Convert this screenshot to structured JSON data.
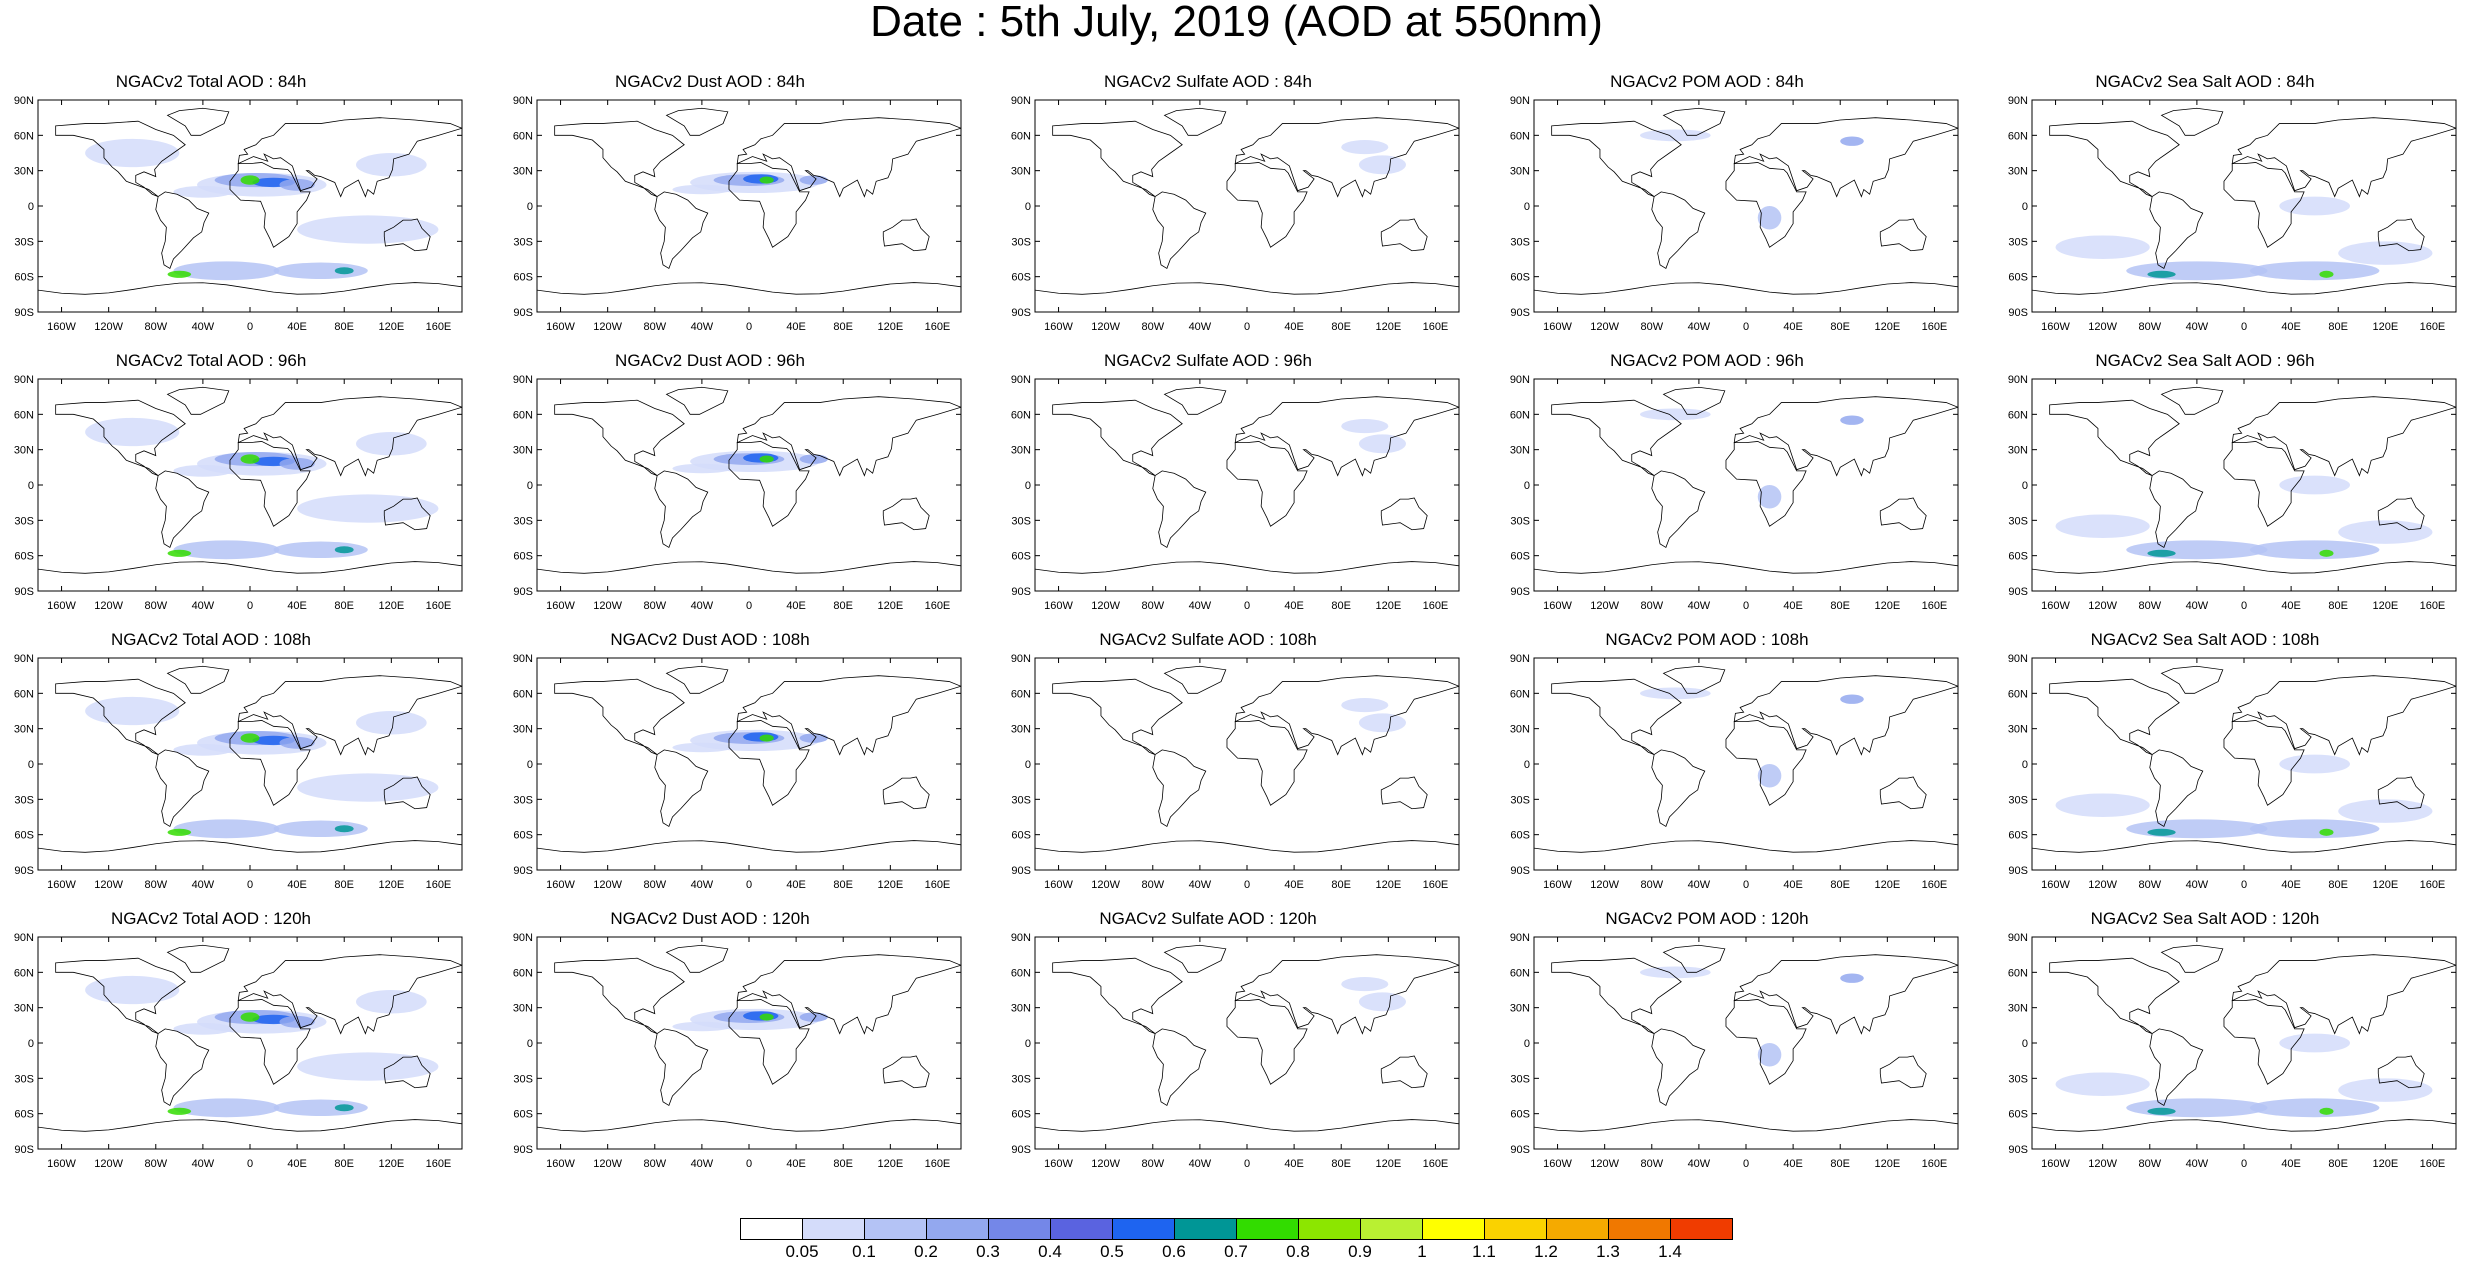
{
  "title": "Date : 5th July, 2019 (AOD at 550nm)",
  "lat_labels": [
    "90N",
    "60N",
    "30N",
    "0",
    "30S",
    "60S",
    "90S"
  ],
  "lon_labels": [
    "160W",
    "120W",
    "80W",
    "40W",
    "0",
    "40E",
    "80E",
    "120E",
    "160E"
  ],
  "panels": [
    {
      "title": "NGACv2 Total AOD : 84h",
      "species": "total"
    },
    {
      "title": "NGACv2 Dust AOD : 84h",
      "species": "dust"
    },
    {
      "title": "NGACv2 Sulfate AOD : 84h",
      "species": "sulfate"
    },
    {
      "title": "NGACv2 POM AOD : 84h",
      "species": "pom"
    },
    {
      "title": "NGACv2 Sea Salt AOD : 84h",
      "species": "seasalt"
    },
    {
      "title": "NGACv2 Total AOD : 96h",
      "species": "total"
    },
    {
      "title": "NGACv2 Dust AOD : 96h",
      "species": "dust"
    },
    {
      "title": "NGACv2 Sulfate AOD : 96h",
      "species": "sulfate"
    },
    {
      "title": "NGACv2 POM AOD : 96h",
      "species": "pom"
    },
    {
      "title": "NGACv2 Sea Salt AOD : 96h",
      "species": "seasalt"
    },
    {
      "title": "NGACv2 Total AOD : 108h",
      "species": "total"
    },
    {
      "title": "NGACv2 Dust AOD : 108h",
      "species": "dust"
    },
    {
      "title": "NGACv2 Sulfate AOD : 108h",
      "species": "sulfate"
    },
    {
      "title": "NGACv2 POM AOD : 108h",
      "species": "pom"
    },
    {
      "title": "NGACv2 Sea Salt AOD : 108h",
      "species": "seasalt"
    },
    {
      "title": "NGACv2 Total AOD : 120h",
      "species": "total"
    },
    {
      "title": "NGACv2 Dust AOD : 120h",
      "species": "dust"
    },
    {
      "title": "NGACv2 Sulfate AOD : 120h",
      "species": "sulfate"
    },
    {
      "title": "NGACv2 POM AOD : 120h",
      "species": "pom"
    },
    {
      "title": "NGACv2 Sea Salt  AOD : 120h",
      "species": "seasalt"
    }
  ],
  "colorbar": {
    "colors": [
      "#ffffff",
      "#d4dcfa",
      "#b4c3f5",
      "#93a8ef",
      "#7487e8",
      "#5a63e0",
      "#1e64f0",
      "#009696",
      "#32dc00",
      "#8ce600",
      "#b9f032",
      "#ffff00",
      "#fad200",
      "#f5aa00",
      "#f07800",
      "#f03c00"
    ],
    "labels": [
      "0.05",
      "0.1",
      "0.2",
      "0.3",
      "0.4",
      "0.5",
      "0.6",
      "0.7",
      "0.8",
      "0.9",
      "1",
      "1.1",
      "1.2",
      "1.3",
      "1.4"
    ]
  }
}
